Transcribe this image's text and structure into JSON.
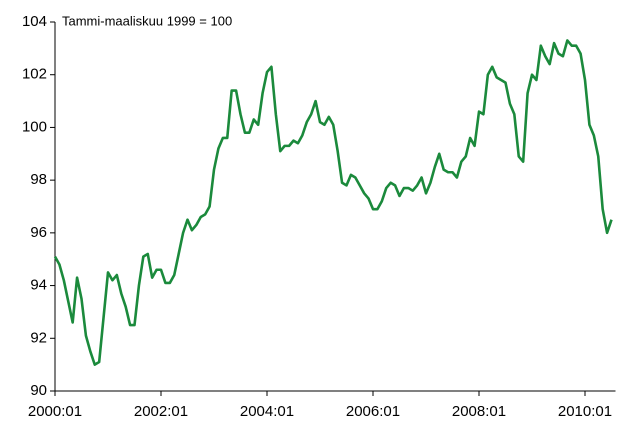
{
  "chart_data": {
    "type": "line",
    "subtitle": "Tammi-maaliskuu 1999 = 100",
    "categories": [
      "2000:01",
      null,
      null,
      null,
      null,
      null,
      null,
      null,
      null,
      null,
      null,
      null,
      null,
      null,
      null,
      null,
      null,
      null,
      null,
      null,
      null,
      null,
      null,
      null,
      "2002:01",
      null,
      null,
      null,
      null,
      null,
      null,
      null,
      null,
      null,
      null,
      null,
      null,
      null,
      null,
      null,
      null,
      null,
      null,
      null,
      null,
      null,
      null,
      null,
      "2004:01",
      null,
      null,
      null,
      null,
      null,
      null,
      null,
      null,
      null,
      null,
      null,
      null,
      null,
      null,
      null,
      null,
      null,
      null,
      null,
      null,
      null,
      null,
      null,
      "2006:01",
      null,
      null,
      null,
      null,
      null,
      null,
      null,
      null,
      null,
      null,
      null,
      null,
      null,
      null,
      null,
      null,
      null,
      null,
      null,
      null,
      null,
      null,
      null,
      "2008:01",
      null,
      null,
      null,
      null,
      null,
      null,
      null,
      null,
      null,
      null,
      null,
      null,
      null,
      null,
      null,
      null,
      null,
      null,
      null,
      null,
      null,
      null,
      null,
      "2010:01",
      null,
      null,
      null,
      null,
      null,
      null
    ],
    "series": [
      {
        "color": "#1b8a3c",
        "values": [
          95.1,
          94.8,
          94.2,
          93.4,
          92.6,
          94.3,
          93.5,
          92.1,
          91.5,
          91.0,
          91.1,
          92.8,
          94.5,
          94.2,
          94.4,
          93.7,
          93.2,
          92.5,
          92.5,
          94.0,
          95.1,
          95.2,
          94.3,
          94.6,
          94.6,
          94.1,
          94.1,
          94.4,
          95.2,
          96.0,
          96.5,
          96.1,
          96.3,
          96.6,
          96.7,
          97.0,
          98.4,
          99.2,
          99.6,
          99.6,
          101.4,
          101.4,
          100.5,
          99.8,
          99.8,
          100.3,
          100.1,
          101.3,
          102.1,
          102.3,
          100.5,
          99.1,
          99.3,
          99.3,
          99.5,
          99.4,
          99.7,
          100.2,
          100.5,
          101.0,
          100.2,
          100.1,
          100.4,
          100.1,
          99.1,
          97.9,
          97.8,
          98.2,
          98.1,
          97.8,
          97.5,
          97.3,
          96.9,
          96.9,
          97.2,
          97.7,
          97.9,
          97.8,
          97.4,
          97.7,
          97.7,
          97.6,
          97.8,
          98.1,
          97.5,
          97.9,
          98.5,
          99.0,
          98.4,
          98.3,
          98.3,
          98.1,
          98.7,
          98.9,
          99.6,
          99.3,
          100.6,
          100.5,
          102.0,
          102.3,
          101.9,
          101.8,
          101.7,
          100.9,
          100.5,
          98.9,
          98.7,
          101.3,
          102.0,
          101.8,
          103.1,
          102.7,
          102.4,
          103.2,
          102.8,
          102.7,
          103.3,
          103.1,
          103.1,
          102.8,
          101.8,
          100.1,
          99.7,
          98.9,
          96.9,
          96.0,
          96.5
        ]
      }
    ],
    "ylim": [
      90,
      104
    ],
    "yticks": [
      90,
      92,
      94,
      96,
      98,
      100,
      102,
      104
    ]
  }
}
